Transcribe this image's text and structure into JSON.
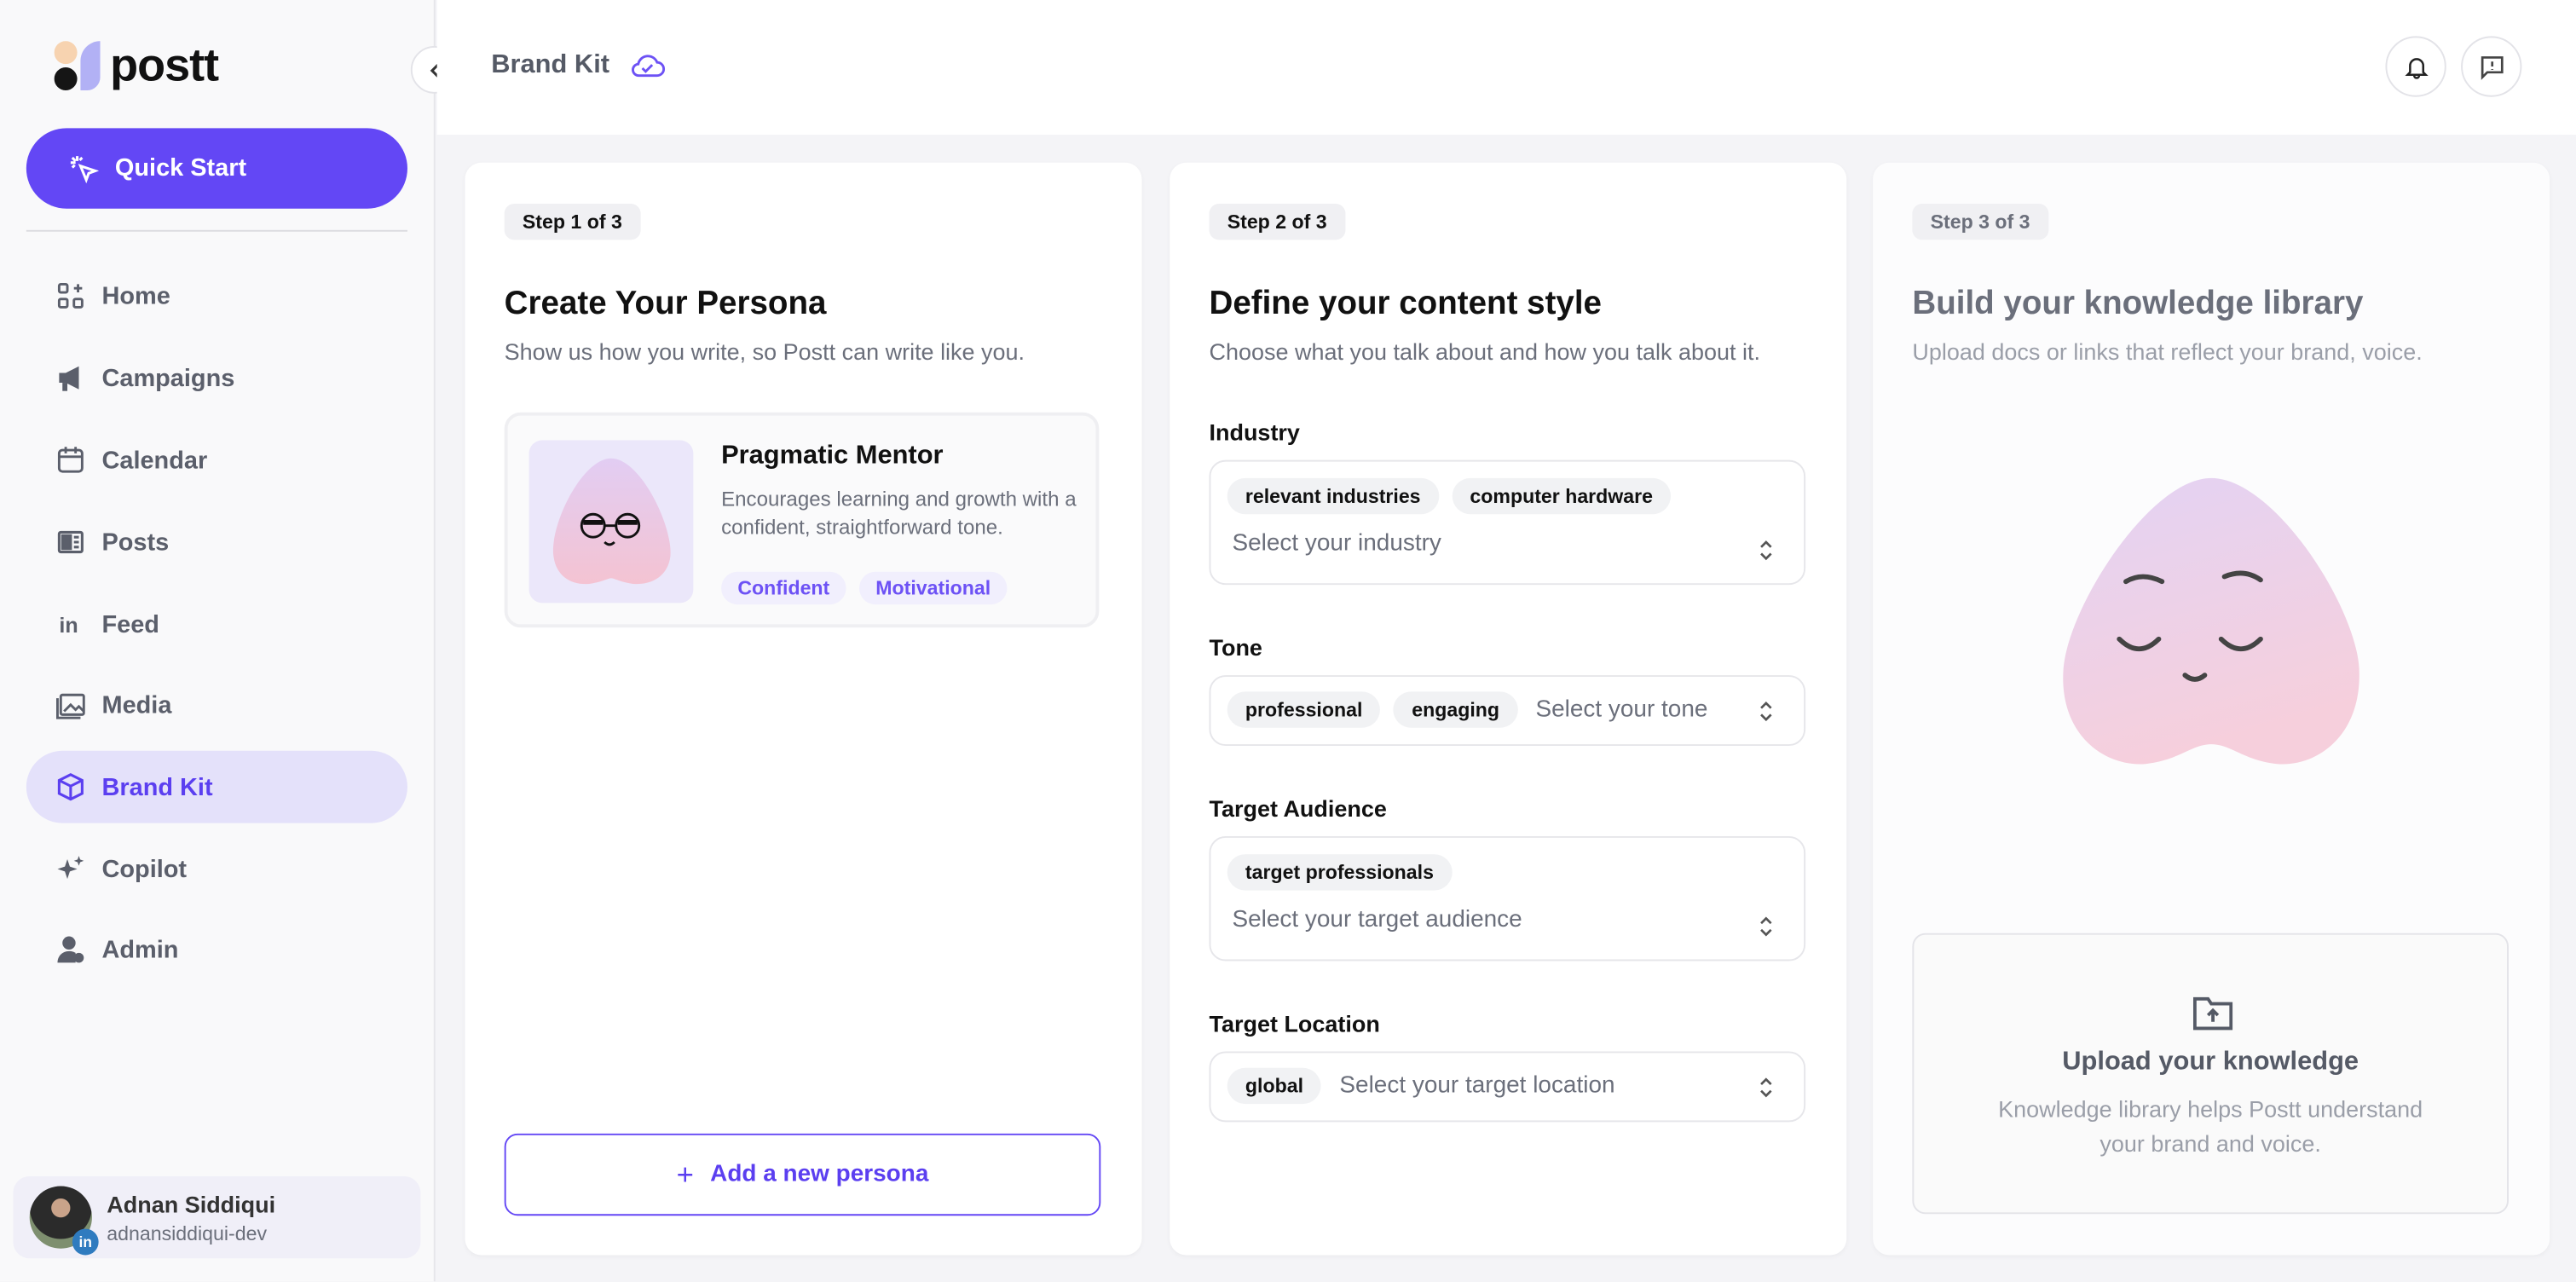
{
  "app": {
    "logo_text": "postt",
    "page_title": "Brand Kit"
  },
  "sidebar": {
    "quick_start": "Quick Start",
    "items": [
      {
        "label": "Home",
        "icon": "home-grid-icon"
      },
      {
        "label": "Campaigns",
        "icon": "megaphone-icon"
      },
      {
        "label": "Calendar",
        "icon": "calendar-icon"
      },
      {
        "label": "Posts",
        "icon": "posts-icon"
      },
      {
        "label": "Feed",
        "icon": "linkedin-icon"
      },
      {
        "label": "Media",
        "icon": "media-icon"
      },
      {
        "label": "Brand Kit",
        "icon": "cube-icon",
        "active": true
      },
      {
        "label": "Copilot",
        "icon": "sparkles-icon"
      },
      {
        "label": "Admin",
        "icon": "admin-icon"
      }
    ],
    "user": {
      "name": "Adnan Siddiqui",
      "handle": "adnansiddiqui-dev",
      "badge": "in"
    }
  },
  "colors": {
    "accent": "#6347f5",
    "active_bg": "#e4e1fa",
    "background": "#f4f4f7"
  },
  "step1": {
    "badge": "Step 1 of 3",
    "title": "Create Your Persona",
    "subtitle": "Show us how you write, so Postt can write like you.",
    "persona": {
      "name": "Pragmatic Mentor",
      "description": "Encourages learning and growth with a confident, straightforward tone.",
      "tags": [
        "Confident",
        "Motivational"
      ]
    },
    "add_button": "Add a new persona"
  },
  "step2": {
    "badge": "Step 2 of 3",
    "title": "Define your content style",
    "subtitle": "Choose what you talk about and how you talk about it.",
    "fields": [
      {
        "label": "Industry",
        "chips": [
          "relevant industries",
          "computer hardware"
        ],
        "placeholder": "Select your industry"
      },
      {
        "label": "Tone",
        "chips": [
          "professional",
          "engaging"
        ],
        "placeholder": "Select your tone"
      },
      {
        "label": "Target Audience",
        "chips": [
          "target professionals"
        ],
        "placeholder": "Select your target audience"
      },
      {
        "label": "Target Location",
        "chips": [
          "global"
        ],
        "placeholder": "Select your target location"
      }
    ]
  },
  "step3": {
    "badge": "Step 3 of 3",
    "title": "Build your knowledge library",
    "subtitle": "Upload docs or links that reflect your brand, voice.",
    "upload_title": "Upload your knowledge",
    "upload_desc": "Knowledge library helps Postt understand your brand and voice."
  }
}
